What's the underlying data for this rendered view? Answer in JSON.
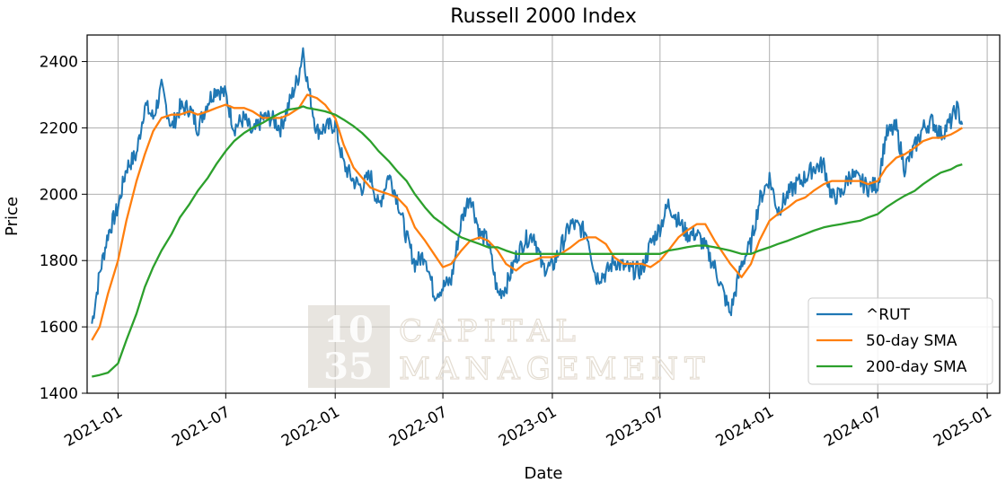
{
  "chart_data": {
    "type": "line",
    "title": "Russell 2000 Index",
    "xlabel": "Date",
    "ylabel": "Price",
    "ylim": [
      1400,
      2480
    ],
    "xlim": [
      "2020-11-10",
      "2025-01-22"
    ],
    "grid": true,
    "legend_position": "lower-right",
    "x_ticks": [
      "2021-01",
      "2021-07",
      "2022-01",
      "2022-07",
      "2023-01",
      "2023-07",
      "2024-01",
      "2024-07",
      "2025-01"
    ],
    "y_ticks": [
      1400,
      1600,
      1800,
      2000,
      2200,
      2400
    ],
    "x": [
      "2020-11-18",
      "2020-12-01",
      "2020-12-15",
      "2021-01-01",
      "2021-01-15",
      "2021-02-01",
      "2021-02-15",
      "2021-03-01",
      "2021-03-15",
      "2021-04-01",
      "2021-04-15",
      "2021-05-01",
      "2021-05-15",
      "2021-06-01",
      "2021-06-15",
      "2021-07-01",
      "2021-07-15",
      "2021-08-01",
      "2021-08-15",
      "2021-09-01",
      "2021-09-15",
      "2021-10-01",
      "2021-10-15",
      "2021-11-01",
      "2021-11-08",
      "2021-11-15",
      "2021-12-01",
      "2021-12-15",
      "2022-01-01",
      "2022-01-15",
      "2022-02-01",
      "2022-02-15",
      "2022-03-01",
      "2022-03-15",
      "2022-04-01",
      "2022-04-15",
      "2022-05-01",
      "2022-05-15",
      "2022-06-01",
      "2022-06-16",
      "2022-07-01",
      "2022-07-15",
      "2022-08-01",
      "2022-08-16",
      "2022-09-01",
      "2022-09-15",
      "2022-10-01",
      "2022-10-15",
      "2022-11-01",
      "2022-11-15",
      "2022-12-01",
      "2022-12-15",
      "2023-01-01",
      "2023-01-15",
      "2023-02-01",
      "2023-02-15",
      "2023-03-01",
      "2023-03-15",
      "2023-04-01",
      "2023-04-15",
      "2023-05-01",
      "2023-05-15",
      "2023-06-01",
      "2023-06-15",
      "2023-07-01",
      "2023-07-15",
      "2023-08-01",
      "2023-08-15",
      "2023-09-01",
      "2023-09-15",
      "2023-10-01",
      "2023-10-27",
      "2023-11-15",
      "2023-12-01",
      "2023-12-15",
      "2024-01-01",
      "2024-01-15",
      "2024-02-01",
      "2024-02-15",
      "2024-03-01",
      "2024-03-15",
      "2024-04-01",
      "2024-04-15",
      "2024-05-01",
      "2024-05-15",
      "2024-06-01",
      "2024-06-15",
      "2024-07-01",
      "2024-07-15",
      "2024-08-01",
      "2024-08-15",
      "2024-09-01",
      "2024-09-15",
      "2024-10-01",
      "2024-10-15",
      "2024-11-01",
      "2024-11-11",
      "2024-11-20"
    ],
    "series": [
      {
        "name": "^RUT",
        "color": "#1f77b4",
        "values": [
          1610,
          1760,
          1880,
          1960,
          2080,
          2120,
          2270,
          2230,
          2320,
          2200,
          2260,
          2260,
          2200,
          2280,
          2320,
          2300,
          2200,
          2230,
          2180,
          2230,
          2230,
          2200,
          2270,
          2360,
          2440,
          2340,
          2190,
          2200,
          2210,
          2090,
          2040,
          2020,
          2060,
          1960,
          2060,
          1990,
          1870,
          1790,
          1820,
          1700,
          1720,
          1740,
          1920,
          2000,
          1880,
          1860,
          1700,
          1720,
          1810,
          1860,
          1880,
          1780,
          1780,
          1840,
          1910,
          1900,
          1880,
          1750,
          1760,
          1800,
          1780,
          1770,
          1770,
          1850,
          1900,
          1970,
          1920,
          1880,
          1880,
          1840,
          1780,
          1640,
          1790,
          1850,
          1980,
          2050,
          1950,
          2000,
          2030,
          2050,
          2080,
          2090,
          1990,
          2000,
          2060,
          2040,
          2020,
          2030,
          2180,
          2200,
          2080,
          2140,
          2200,
          2220,
          2180,
          2220,
          2260,
          2210
        ]
      },
      {
        "name": "50-day SMA",
        "color": "#ff7f0e",
        "values": [
          1560,
          1600,
          1700,
          1800,
          1920,
          2040,
          2120,
          2190,
          2230,
          2240,
          2240,
          2250,
          2240,
          2250,
          2260,
          2270,
          2260,
          2260,
          2250,
          2230,
          2230,
          2230,
          2240,
          2260,
          2280,
          2300,
          2290,
          2270,
          2230,
          2150,
          2080,
          2050,
          2020,
          2010,
          2000,
          1990,
          1960,
          1900,
          1860,
          1820,
          1780,
          1790,
          1830,
          1860,
          1870,
          1860,
          1830,
          1790,
          1770,
          1790,
          1800,
          1810,
          1810,
          1820,
          1840,
          1860,
          1870,
          1870,
          1850,
          1810,
          1790,
          1790,
          1790,
          1780,
          1800,
          1830,
          1870,
          1890,
          1910,
          1910,
          1860,
          1790,
          1750,
          1790,
          1860,
          1920,
          1940,
          1960,
          1980,
          1990,
          2010,
          2030,
          2040,
          2040,
          2040,
          2040,
          2030,
          2040,
          2080,
          2110,
          2120,
          2140,
          2160,
          2170,
          2170,
          2180,
          2190,
          2200
        ]
      },
      {
        "name": "200-day SMA",
        "color": "#2ca02c",
        "values": [
          1450,
          1455,
          1462,
          1490,
          1560,
          1640,
          1720,
          1780,
          1830,
          1880,
          1930,
          1970,
          2010,
          2050,
          2090,
          2130,
          2160,
          2185,
          2200,
          2215,
          2230,
          2245,
          2255,
          2260,
          2265,
          2260,
          2255,
          2250,
          2240,
          2225,
          2205,
          2185,
          2160,
          2130,
          2100,
          2070,
          2040,
          2000,
          1960,
          1930,
          1910,
          1890,
          1870,
          1860,
          1850,
          1840,
          1840,
          1830,
          1820,
          1820,
          1820,
          1820,
          1820,
          1820,
          1820,
          1820,
          1820,
          1820,
          1820,
          1820,
          1820,
          1820,
          1820,
          1820,
          1820,
          1830,
          1835,
          1840,
          1845,
          1845,
          1840,
          1830,
          1820,
          1820,
          1830,
          1840,
          1850,
          1860,
          1870,
          1880,
          1890,
          1900,
          1905,
          1910,
          1915,
          1920,
          1930,
          1940,
          1960,
          1980,
          1995,
          2010,
          2030,
          2050,
          2065,
          2075,
          2085,
          2090
        ]
      }
    ]
  },
  "watermark": {
    "number_top": "10",
    "number_bottom": "35",
    "word_top": "CAPITAL",
    "word_bottom": "MANAGEMENT"
  }
}
